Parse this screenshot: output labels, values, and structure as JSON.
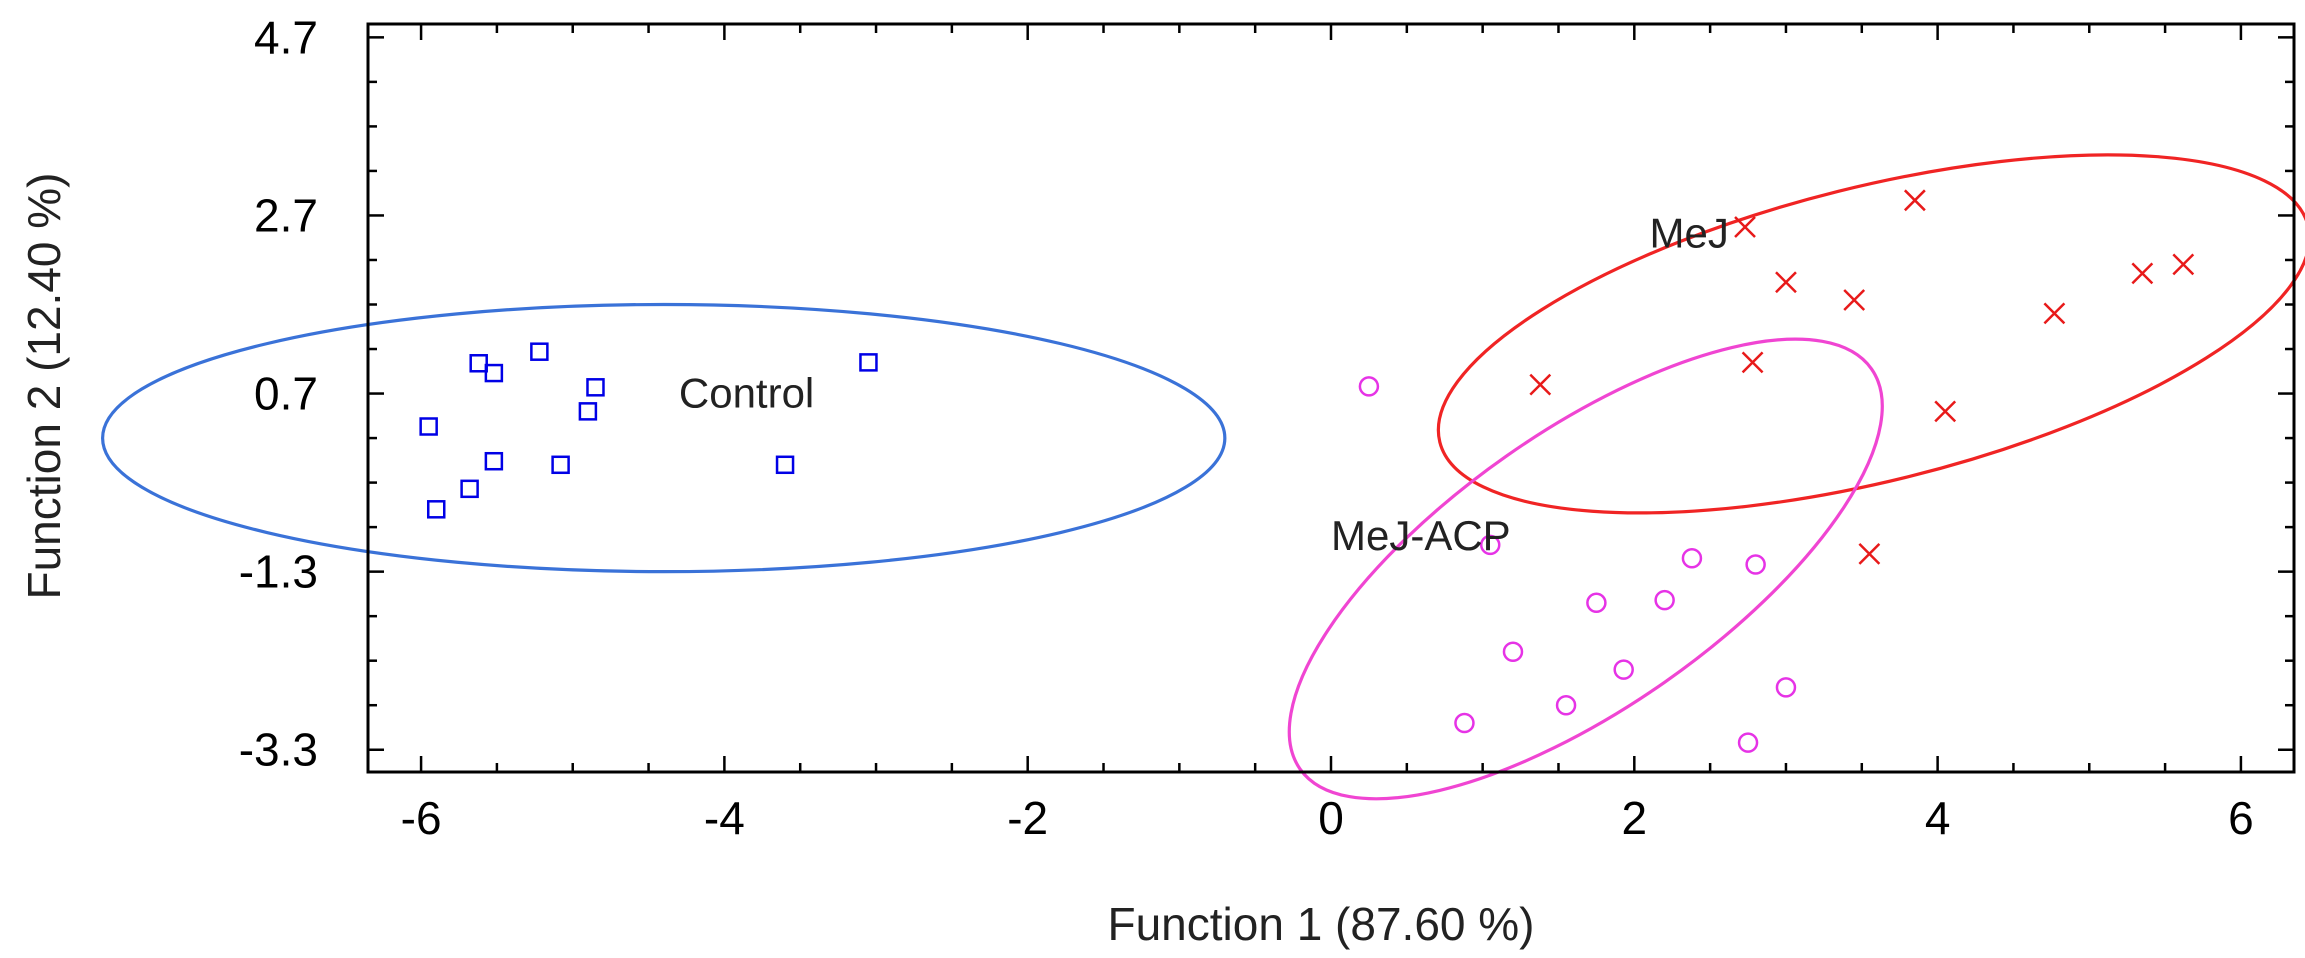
{
  "chart_data": {
    "type": "scatter",
    "title": "",
    "xlabel": "Function 1 (87.60 %)",
    "ylabel": "Function 2 (12.40 %)",
    "xlim": [
      -6.35,
      6.35
    ],
    "ylim": [
      -3.55,
      4.85
    ],
    "x_ticks": [
      -6,
      -4,
      -2,
      0,
      2,
      4,
      6
    ],
    "x_tick_labels": [
      "-6",
      "-4",
      "-2",
      "0",
      "2",
      "4",
      "6"
    ],
    "y_ticks": [
      -3.3,
      -1.3,
      0.7,
      2.7,
      4.7
    ],
    "y_tick_labels": [
      "-3.3",
      "-1.3",
      "0.7",
      "2.7",
      "4.7"
    ],
    "x_minor_step": 0.5,
    "y_minor_step": 0.5,
    "grid": false,
    "legend": "none",
    "series": [
      {
        "name": "Control",
        "label": "Control",
        "marker": "square",
        "color": "#0000e6",
        "ellipse_color": "#3a72d8",
        "label_pos": [
          -4.2,
          0.7
        ],
        "ellipse": {
          "center": [
            -4.4,
            0.2
          ],
          "rx": 3.7,
          "ry": 1.5,
          "angle": 0
        },
        "points": [
          [
            -5.95,
            0.33
          ],
          [
            -5.62,
            1.04
          ],
          [
            -5.52,
            0.93
          ],
          [
            -5.22,
            1.17
          ],
          [
            -4.85,
            0.77
          ],
          [
            -4.9,
            0.5
          ],
          [
            -5.52,
            -0.06
          ],
          [
            -5.68,
            -0.37
          ],
          [
            -5.9,
            -0.6
          ],
          [
            -5.08,
            -0.1
          ],
          [
            -3.6,
            -0.1
          ],
          [
            -3.05,
            1.05
          ]
        ]
      },
      {
        "name": "MeJ",
        "label": "MeJ",
        "marker": "x",
        "color": "#e81a1a",
        "ellipse_color": "#f02424",
        "label_pos": [
          2.1,
          2.5
        ],
        "ellipse": {
          "center": [
            3.58,
            1.37
          ],
          "rx": 2.95,
          "ry": 1.65,
          "angle": -14
        },
        "points": [
          [
            2.73,
            2.57
          ],
          [
            3.85,
            2.87
          ],
          [
            3.0,
            1.95
          ],
          [
            3.45,
            1.75
          ],
          [
            5.35,
            2.05
          ],
          [
            5.62,
            2.15
          ],
          [
            4.77,
            1.6
          ],
          [
            2.78,
            1.05
          ],
          [
            1.38,
            0.8
          ],
          [
            4.05,
            0.5
          ],
          [
            3.55,
            -1.1
          ]
        ]
      },
      {
        "name": "MeJ-ACP",
        "label": "MeJ-ACP",
        "marker": "circle",
        "color": "#e633e6",
        "ellipse_color": "#f045d2",
        "label_pos": [
          0.0,
          -0.9
        ],
        "ellipse": {
          "center": [
            1.68,
            -1.27
          ],
          "rx": 2.3,
          "ry": 1.55,
          "angle": -35
        },
        "points": [
          [
            0.25,
            0.78
          ],
          [
            1.05,
            -1.0
          ],
          [
            2.38,
            -1.15
          ],
          [
            2.8,
            -1.22
          ],
          [
            1.75,
            -1.65
          ],
          [
            2.2,
            -1.62
          ],
          [
            1.2,
            -2.2
          ],
          [
            1.93,
            -2.4
          ],
          [
            3.0,
            -2.6
          ],
          [
            1.55,
            -2.8
          ],
          [
            0.88,
            -3.0
          ],
          [
            2.75,
            -3.22
          ]
        ]
      }
    ]
  }
}
